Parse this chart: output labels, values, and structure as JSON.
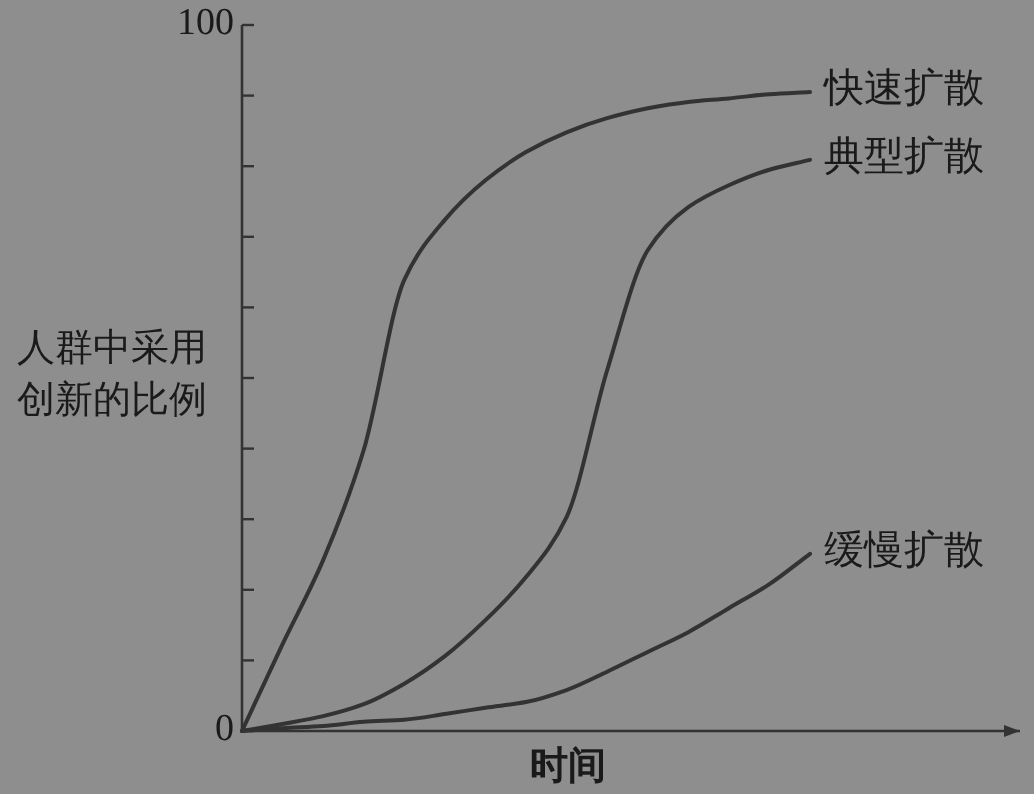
{
  "chart_data": {
    "type": "line",
    "xlabel": "时间",
    "ylabel": "人群中采用创新的比例",
    "categories": [
      null,
      null,
      null,
      null,
      null,
      null,
      null,
      null,
      null,
      null,
      null,
      null,
      null,
      null,
      null
    ],
    "ylim": [
      0,
      100
    ],
    "yticks": [
      0,
      {
        "value": 10,
        "label": null
      },
      {
        "value": 20,
        "label": null
      },
      {
        "value": 30,
        "label": null
      },
      {
        "value": 40,
        "label": null
      },
      {
        "value": 50,
        "label": null
      },
      {
        "value": 60,
        "label": null
      },
      {
        "value": 70,
        "label": null
      },
      {
        "value": 80,
        "label": null
      },
      {
        "value": 90,
        "label": null
      },
      100
    ],
    "series": [
      {
        "name": "快速扩散",
        "color": "#333333",
        "values": [
          0,
          12.3,
          24.2,
          39.8,
          63.9,
          72.4,
          78.0,
          82.0,
          84.8,
          86.8,
          88.2,
          89.1,
          89.6,
          90.2,
          90.5
        ]
      },
      {
        "name": "典型扩散",
        "color": "#333333",
        "values": [
          0,
          1.0,
          2.1,
          3.8,
          6.7,
          10.6,
          15.7,
          21.8,
          30.3,
          51.1,
          68.1,
          74.2,
          77.3,
          79.5,
          80.9
        ]
      },
      {
        "name": "缓慢扩散",
        "color": "#333333",
        "values": [
          0,
          0.4,
          0.7,
          1.3,
          1.6,
          2.4,
          3.3,
          4.1,
          5.8,
          8.4,
          11.2,
          14.0,
          17.4,
          20.8,
          25.1
        ]
      }
    ]
  }
}
